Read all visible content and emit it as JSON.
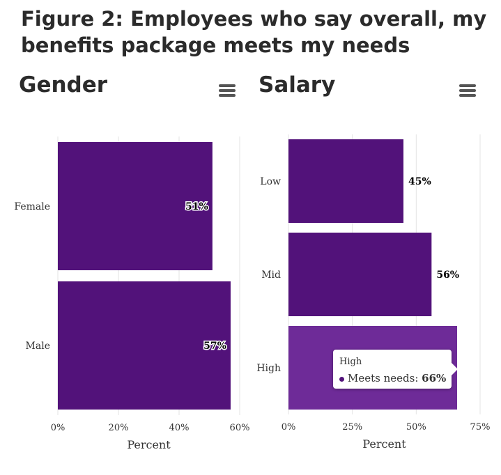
{
  "figure_title": "Figure 2: Employees who say overall, my benefits package meets my needs",
  "colors": {
    "bar": "#52127a",
    "bar_hover": "#6e2b98",
    "grid": "#e3e3e3",
    "text": "#2b2b2b"
  },
  "chart_data": [
    {
      "type": "bar",
      "orientation": "horizontal",
      "title": "Gender",
      "categories": [
        "Female",
        "Male"
      ],
      "values": [
        51,
        57
      ],
      "data_labels": [
        "51%",
        "57%"
      ],
      "xlabel": "Percent",
      "xlim": [
        0,
        60
      ],
      "xticks": [
        0,
        20,
        40,
        60
      ],
      "xtick_labels": [
        "0%",
        "20%",
        "40%",
        "60%"
      ],
      "grid": true
    },
    {
      "type": "bar",
      "orientation": "horizontal",
      "title": "Salary",
      "categories": [
        "Low",
        "Mid",
        "High"
      ],
      "values": [
        45,
        56,
        66
      ],
      "data_labels": [
        "45%",
        "56%",
        ""
      ],
      "xlabel": "Percent",
      "xlim": [
        0,
        75
      ],
      "xticks": [
        0,
        25,
        50,
        75
      ],
      "xtick_labels": [
        "0%",
        "25%",
        "50%",
        "75%"
      ],
      "grid": true,
      "tooltip": {
        "category": "High",
        "series": "Meets needs",
        "value": "66%"
      }
    }
  ]
}
